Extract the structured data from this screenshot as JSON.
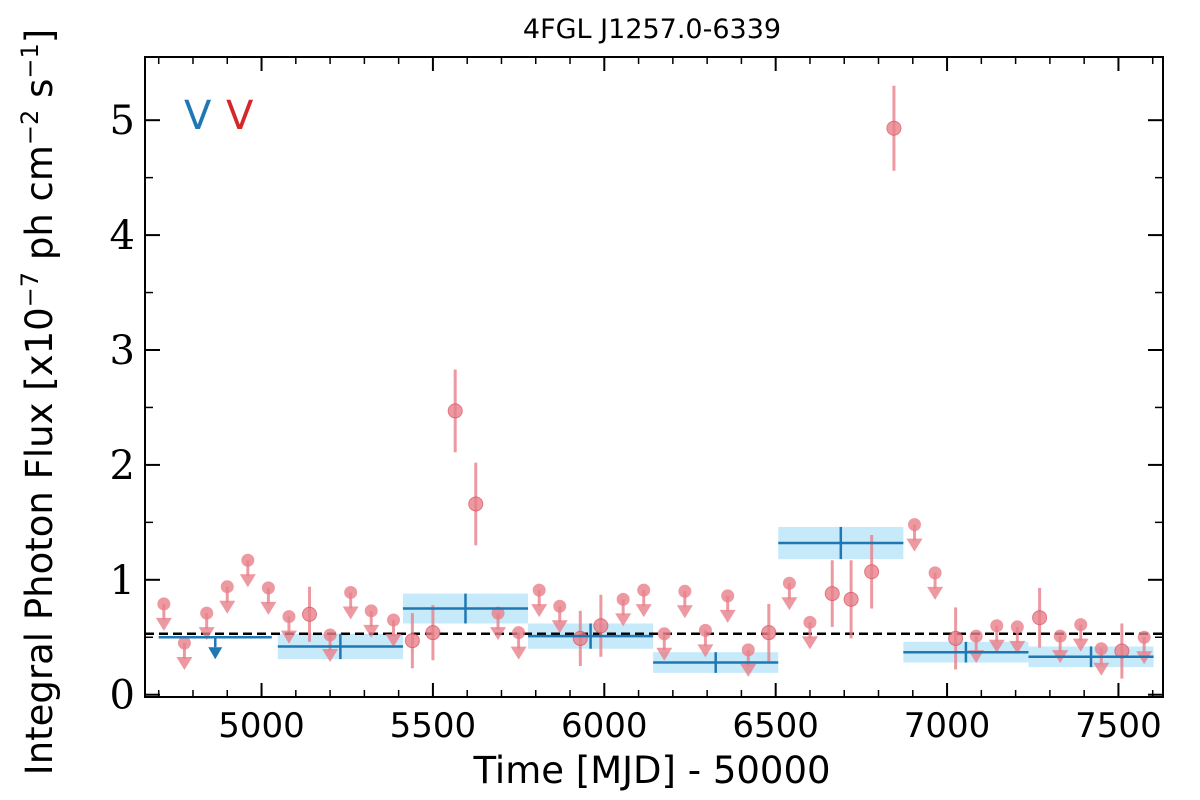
{
  "chart_data": {
    "type": "scatter",
    "title": "4FGL J1257.0-6339",
    "xlabel": "Time [MJD] - 50000",
    "ylabel_prefix": "Integral Photon Flux [x10",
    "ylabel_exp1": "−7",
    "ylabel_mid": " ph cm",
    "ylabel_exp2": "−2",
    "ylabel_mid2": " s",
    "ylabel_exp3": "−1",
    "ylabel_suffix": "]",
    "xlim": [
      4660,
      7630
    ],
    "ylim": [
      -0.02,
      5.55
    ],
    "x_ticks": [
      5000,
      5500,
      6000,
      6500,
      7000,
      7500
    ],
    "x_tick_labels": [
      "5000",
      "5500",
      "6000",
      "6500",
      "7000",
      "7500"
    ],
    "y_ticks": [
      0,
      1,
      2,
      3,
      4,
      5
    ],
    "y_tick_labels": [
      "0",
      "1",
      "2",
      "3",
      "4",
      "5"
    ],
    "mean_flux": 0.53,
    "legend": [
      {
        "label": "V",
        "color": "#1f77b4"
      },
      {
        "label": "V",
        "color": "#d62728"
      }
    ],
    "colors": {
      "long_bin": "#1f77b4",
      "long_bin_band": "#aee1f8",
      "short_bin": "#e8808a",
      "mean_line": "#000000"
    },
    "series": [
      {
        "label": "V",
        "bin_width_days": 365,
        "detections": [
          {
            "x": 5230,
            "y": 0.42,
            "yerr": 0.11
          },
          {
            "x": 5595,
            "y": 0.75,
            "yerr": 0.13
          },
          {
            "x": 5960,
            "y": 0.51,
            "yerr": 0.11
          },
          {
            "x": 6325,
            "y": 0.28,
            "yerr": 0.09
          },
          {
            "x": 6690,
            "y": 1.32,
            "yerr": 0.14
          },
          {
            "x": 7055,
            "y": 0.37,
            "yerr": 0.09
          },
          {
            "x": 7420,
            "y": 0.33,
            "yerr": 0.09
          }
        ],
        "upper_limits": [
          {
            "x": 4865,
            "y": 0.5
          }
        ]
      },
      {
        "label": "V",
        "bin_width_days": 61,
        "detections": [
          {
            "x": 5140,
            "y": 0.7,
            "yerr": 0.24
          },
          {
            "x": 5440,
            "y": 0.47,
            "yerr": 0.24
          },
          {
            "x": 5500,
            "y": 0.54,
            "yerr": 0.24
          },
          {
            "x": 5565,
            "y": 2.47,
            "yerr": 0.36
          },
          {
            "x": 5625,
            "y": 1.66,
            "yerr": 0.36
          },
          {
            "x": 5930,
            "y": 0.49,
            "yerr": 0.24
          },
          {
            "x": 5990,
            "y": 0.6,
            "yerr": 0.27
          },
          {
            "x": 6480,
            "y": 0.54,
            "yerr": 0.25
          },
          {
            "x": 6665,
            "y": 0.88,
            "yerr": 0.29
          },
          {
            "x": 6720,
            "y": 0.83,
            "yerr": 0.34
          },
          {
            "x": 6780,
            "y": 1.07,
            "yerr": 0.32
          },
          {
            "x": 6845,
            "y": 4.93,
            "yerr": 0.37
          },
          {
            "x": 7025,
            "y": 0.49,
            "yerr": 0.27
          },
          {
            "x": 7270,
            "y": 0.67,
            "yerr": 0.26
          },
          {
            "x": 7510,
            "y": 0.38,
            "yerr": 0.24
          }
        ],
        "upper_limits": [
          {
            "x": 4715,
            "y": 0.79
          },
          {
            "x": 4775,
            "y": 0.45
          },
          {
            "x": 4840,
            "y": 0.71
          },
          {
            "x": 4900,
            "y": 0.94
          },
          {
            "x": 4960,
            "y": 1.17
          },
          {
            "x": 5020,
            "y": 0.93
          },
          {
            "x": 5080,
            "y": 0.68
          },
          {
            "x": 5200,
            "y": 0.52
          },
          {
            "x": 5260,
            "y": 0.89
          },
          {
            "x": 5320,
            "y": 0.73
          },
          {
            "x": 5385,
            "y": 0.65
          },
          {
            "x": 5690,
            "y": 0.71
          },
          {
            "x": 5750,
            "y": 0.54
          },
          {
            "x": 5810,
            "y": 0.91
          },
          {
            "x": 5870,
            "y": 0.77
          },
          {
            "x": 6055,
            "y": 0.83
          },
          {
            "x": 6115,
            "y": 0.91
          },
          {
            "x": 6175,
            "y": 0.53
          },
          {
            "x": 6235,
            "y": 0.9
          },
          {
            "x": 6295,
            "y": 0.56
          },
          {
            "x": 6360,
            "y": 0.86
          },
          {
            "x": 6420,
            "y": 0.39
          },
          {
            "x": 6540,
            "y": 0.97
          },
          {
            "x": 6600,
            "y": 0.63
          },
          {
            "x": 6905,
            "y": 1.48
          },
          {
            "x": 6965,
            "y": 1.06
          },
          {
            "x": 7085,
            "y": 0.51
          },
          {
            "x": 7145,
            "y": 0.6
          },
          {
            "x": 7205,
            "y": 0.59
          },
          {
            "x": 7330,
            "y": 0.51
          },
          {
            "x": 7390,
            "y": 0.61
          },
          {
            "x": 7450,
            "y": 0.4
          },
          {
            "x": 7575,
            "y": 0.5
          }
        ]
      }
    ]
  }
}
